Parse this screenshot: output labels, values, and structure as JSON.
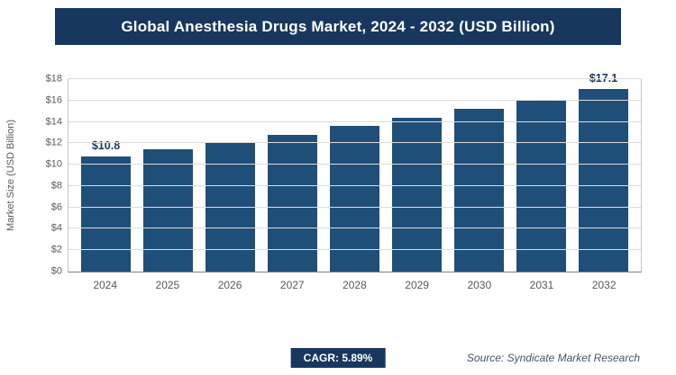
{
  "title": "Global Anesthesia Drugs Market, 2024 - 2032 (USD Billion)",
  "footer": {
    "cagr_label": "CAGR: 5.89%",
    "source": "Source: Syndicate Market Research"
  },
  "chart_data": {
    "type": "bar",
    "title": "Global Anesthesia Drugs Market, 2024 - 2032 (USD Billion)",
    "xlabel": "",
    "ylabel": "Market Size (USD Billion)",
    "categories": [
      "2024",
      "2025",
      "2026",
      "2027",
      "2028",
      "2029",
      "2030",
      "2031",
      "2032"
    ],
    "values": [
      10.8,
      11.4,
      12.1,
      12.8,
      13.6,
      14.4,
      15.2,
      16.1,
      17.1
    ],
    "data_labels": [
      "$10.8",
      null,
      null,
      null,
      null,
      null,
      null,
      null,
      "$17.1"
    ],
    "ylim": [
      0,
      18
    ],
    "ytick_step": 2,
    "ytick_prefix": "$",
    "grid": true,
    "legend": "none",
    "bar_color": "#1F4E79",
    "cagr": "5.89%"
  }
}
